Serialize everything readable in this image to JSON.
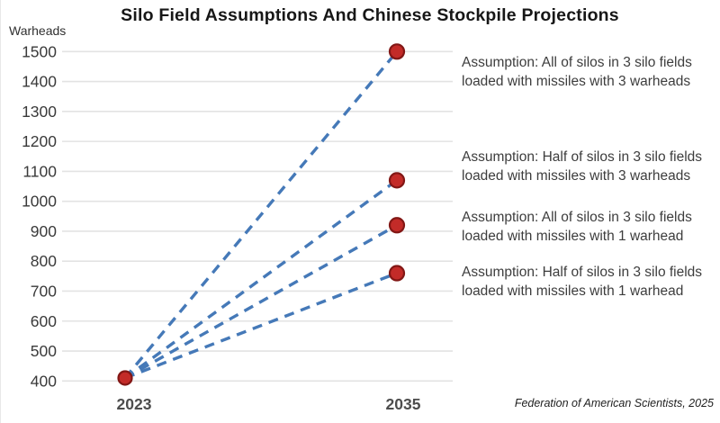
{
  "title": "Silo Field Assumptions And Chinese Stockpile Projections",
  "attribution": "Federation of American Scientists, 2025",
  "chart_data": {
    "type": "line",
    "title": "Silo Field Assumptions And Chinese Stockpile Projections",
    "ylabel": "Warheads",
    "xlabel": "",
    "x_categories": [
      "2023",
      "2035"
    ],
    "ylim": [
      400,
      1500
    ],
    "yticks": [
      1500,
      1400,
      1300,
      1200,
      1100,
      1000,
      900,
      800,
      700,
      600,
      500,
      400
    ],
    "grid": true,
    "legend_position": "right-annotations",
    "line_style": "dashed",
    "marker": "circle",
    "series": [
      {
        "name": "All of silos in 3 silo fields, 3 warheads per missile",
        "values": [
          410,
          1500
        ]
      },
      {
        "name": "Half of silos in 3 silo fields, 3 warheads per missile",
        "values": [
          410,
          1070
        ]
      },
      {
        "name": "All of silos in 3 silo fields, 1 warhead per missile",
        "values": [
          410,
          920
        ]
      },
      {
        "name": "Half of silos in 3 silo fields, 1 warhead per missile",
        "values": [
          410,
          760
        ]
      }
    ],
    "colors": {
      "line": "#4579b8",
      "point_fill": "#c32b28",
      "point_stroke": "#821715",
      "grid": "#e3e3e3",
      "tick_label": "#3a3a3a",
      "x_label": "#4d4d4d"
    }
  },
  "annotations": [
    {
      "line1": "Assumption: All of silos in 3 silo fields",
      "line2": "loaded with missiles with 3 warheads"
    },
    {
      "line1": "Assumption: Half of silos in 3 silo fields",
      "line2": "loaded with missiles with 3 warheads"
    },
    {
      "line1": "Assumption: All of silos in 3 silo fields",
      "line2": "loaded with missiles with 1 warhead"
    },
    {
      "line1": "Assumption: Half of silos in 3 silo fields",
      "line2": "loaded with missiles with 1 warhead"
    }
  ]
}
